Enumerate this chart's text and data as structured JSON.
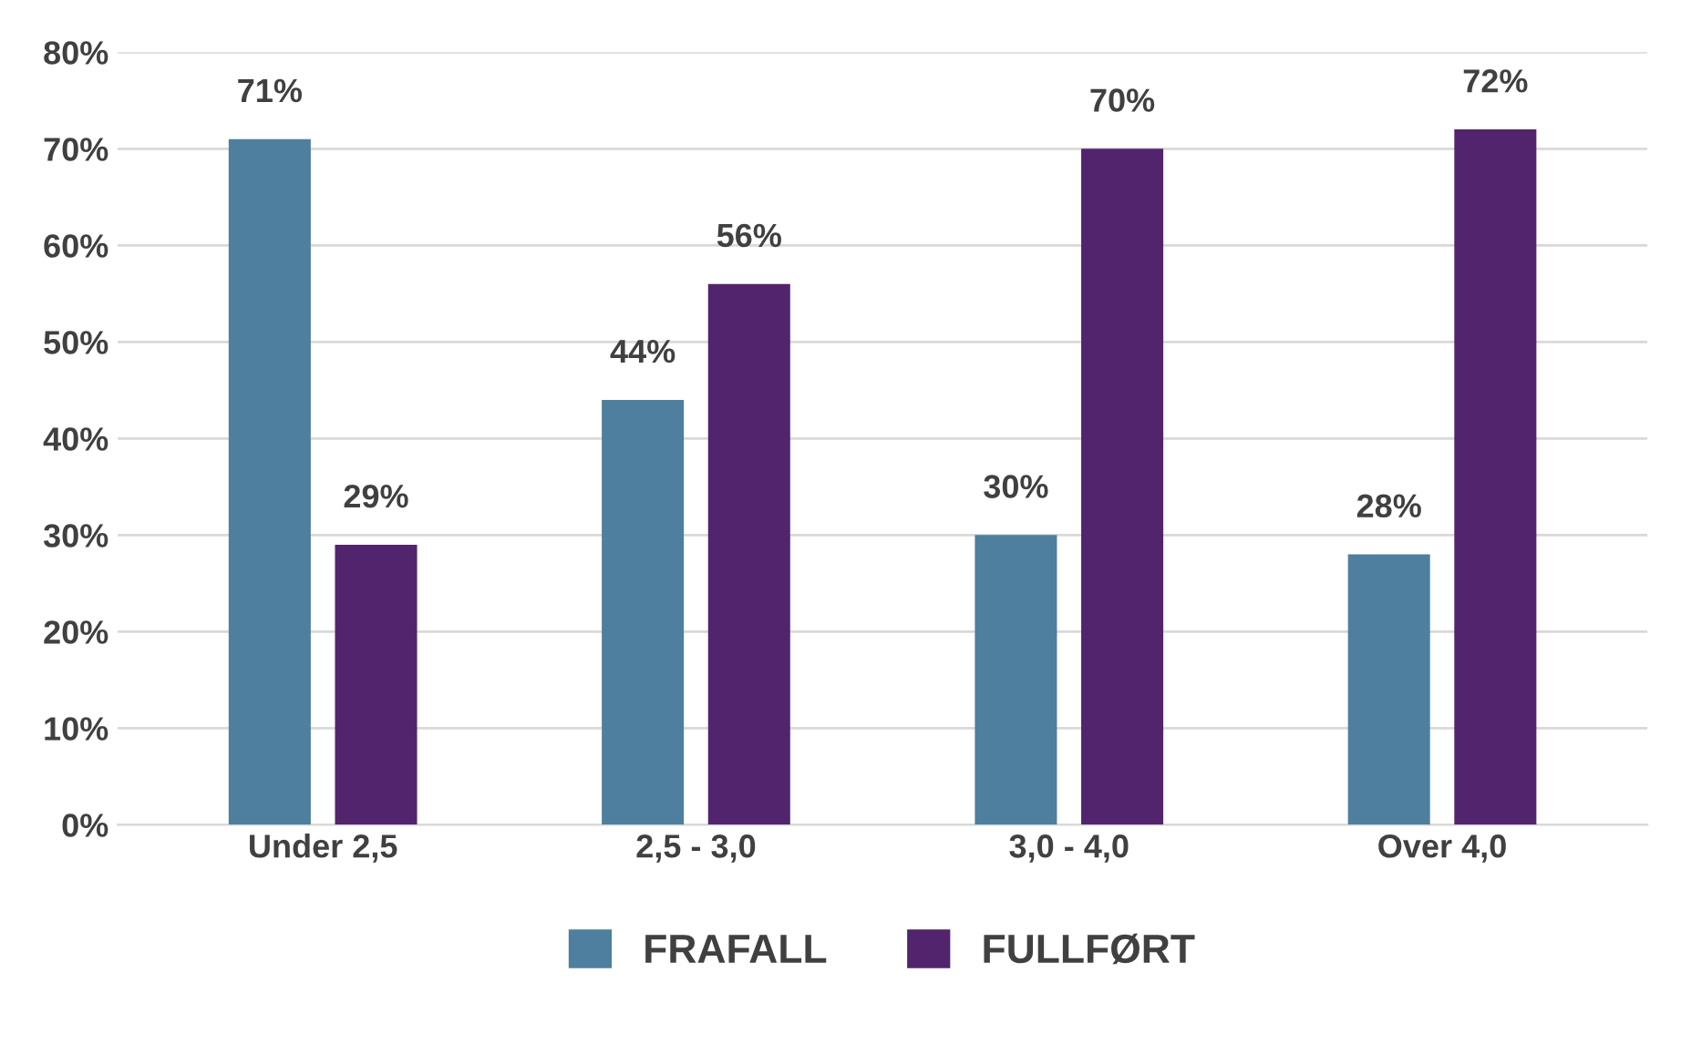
{
  "chart_data": {
    "type": "bar",
    "categories": [
      "Under 2,5",
      "2,5 - 3,0",
      "3,0 - 4,0",
      "Over 4,0"
    ],
    "series": [
      {
        "name": "FRAFALL",
        "color": "#4e7f9e",
        "values": [
          71,
          44,
          30,
          28
        ],
        "value_labels": [
          "71%",
          "44%",
          "30%",
          "28%"
        ]
      },
      {
        "name": "FULLFØRT",
        "color": "#52246e",
        "values": [
          29,
          56,
          70,
          72
        ],
        "value_labels": [
          "29%",
          "56%",
          "70%",
          "72%"
        ]
      }
    ],
    "ylim": [
      0,
      80
    ],
    "yticks": [
      {
        "value": 0,
        "label": "0%"
      },
      {
        "value": 10,
        "label": "10%"
      },
      {
        "value": 20,
        "label": "20%"
      },
      {
        "value": 30,
        "label": "30%"
      },
      {
        "value": 40,
        "label": "40%"
      },
      {
        "value": 50,
        "label": "50%"
      },
      {
        "value": 60,
        "label": "60%"
      },
      {
        "value": 70,
        "label": "70%"
      },
      {
        "value": 80,
        "label": "80%"
      }
    ],
    "grid": "y",
    "legend": "bottom"
  }
}
